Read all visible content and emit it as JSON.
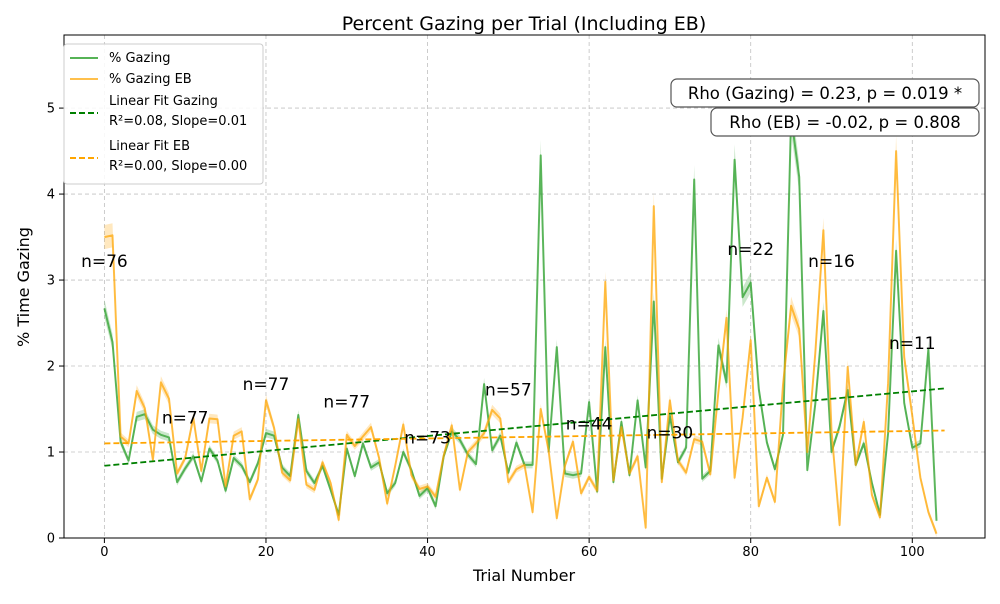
{
  "chart_data": {
    "type": "line",
    "title": "Percent Gazing per Trial (Including EB)",
    "xlabel": "Trial Number",
    "ylabel": "% Time Gazing",
    "xlim": [
      -5,
      109
    ],
    "ylim": [
      0,
      5.85
    ],
    "xticks": [
      0,
      20,
      40,
      60,
      80,
      100
    ],
    "yticks": [
      0,
      1,
      2,
      3,
      4,
      5
    ],
    "grid": true,
    "legend": "top-left",
    "colors": {
      "gazing": "#2ca02c",
      "eb": "#ffa500",
      "fit_gazing": "#008000",
      "fit_eb": "#ffa500"
    },
    "series": [
      {
        "name": "% Gazing",
        "x_start": 0,
        "values": [
          2.67,
          2.28,
          1.12,
          0.9,
          1.41,
          1.44,
          1.26,
          1.2,
          1.17,
          0.65,
          0.81,
          0.95,
          0.66,
          1.04,
          0.9,
          0.55,
          0.93,
          0.84,
          0.65,
          0.87,
          1.22,
          1.19,
          0.82,
          0.72,
          1.43,
          0.78,
          0.64,
          0.84,
          0.56,
          0.27,
          1.04,
          0.72,
          1.1,
          0.82,
          0.88,
          0.52,
          0.64,
          1.0,
          0.79,
          0.49,
          0.58,
          0.37,
          0.95,
          1.24,
          1.14,
          0.97,
          0.86,
          1.79,
          1.02,
          1.19,
          0.76,
          1.11,
          0.85,
          0.85,
          4.45,
          1.01,
          2.22,
          0.75,
          0.73,
          0.75,
          1.58,
          0.54,
          2.22,
          0.65,
          1.35,
          0.73,
          1.6,
          0.82,
          2.75,
          0.69,
          1.42,
          0.88,
          1.05,
          4.17,
          0.69,
          0.78,
          2.24,
          1.81,
          4.4,
          2.8,
          2.97,
          1.73,
          1.11,
          0.8,
          1.2,
          4.9,
          4.2,
          0.79,
          1.56,
          2.64,
          1.0,
          1.3,
          1.72,
          0.85,
          1.1,
          0.64,
          0.27,
          1.22,
          3.34,
          1.57,
          1.05,
          1.1,
          2.2,
          0.2
        ]
      },
      {
        "name": "% Gazing EB",
        "x_start": 0,
        "values": [
          3.5,
          3.52,
          1.18,
          1.1,
          1.71,
          1.51,
          0.91,
          1.81,
          1.62,
          0.75,
          0.93,
          1.4,
          0.78,
          1.39,
          1.38,
          0.6,
          1.19,
          1.24,
          0.45,
          0.68,
          1.6,
          1.28,
          0.76,
          0.67,
          1.38,
          0.62,
          0.56,
          0.88,
          0.64,
          0.21,
          1.2,
          1.07,
          1.18,
          1.29,
          0.93,
          0.4,
          0.84,
          1.32,
          0.73,
          0.57,
          0.6,
          0.48,
          0.96,
          1.31,
          0.56,
          1.0,
          1.1,
          1.22,
          1.49,
          1.39,
          0.65,
          0.8,
          0.85,
          0.3,
          1.5,
          1.01,
          0.23,
          0.84,
          1.12,
          0.52,
          0.71,
          0.55,
          2.98,
          0.67,
          1.29,
          0.75,
          0.95,
          0.12,
          3.86,
          0.65,
          1.6,
          0.9,
          0.76,
          1.15,
          1.12,
          0.74,
          1.7,
          2.56,
          0.7,
          1.4,
          2.3,
          0.37,
          0.7,
          0.42,
          1.78,
          2.7,
          2.43,
          1.0,
          2.15,
          3.58,
          1.25,
          0.15,
          1.99,
          0.85,
          1.35,
          0.5,
          0.24,
          1.8,
          4.5,
          2.1,
          1.42,
          0.7,
          0.3,
          0.05
        ]
      }
    ],
    "fits": [
      {
        "label_line1": "Linear Fit Gazing",
        "label_line2": "R²=0.08, Slope=0.01",
        "x": [
          0,
          104
        ],
        "y": [
          0.84,
          1.74
        ]
      },
      {
        "label_line1": "Linear Fit EB",
        "label_line2": "R²=0.00, Slope=0.00",
        "x": [
          0,
          104
        ],
        "y": [
          1.1,
          1.25
        ]
      }
    ],
    "n_labels": [
      {
        "text": "n=76",
        "x": 0,
        "y": 3.15
      },
      {
        "text": "n=77",
        "x": 10,
        "y": 1.33
      },
      {
        "text": "n=77",
        "x": 20,
        "y": 1.72
      },
      {
        "text": "n=77",
        "x": 30,
        "y": 1.52
      },
      {
        "text": "n=73",
        "x": 40,
        "y": 1.1
      },
      {
        "text": "n=57",
        "x": 50,
        "y": 1.66
      },
      {
        "text": "n=44",
        "x": 60,
        "y": 1.26
      },
      {
        "text": "n=30",
        "x": 70,
        "y": 1.16
      },
      {
        "text": "n=22",
        "x": 80,
        "y": 3.29
      },
      {
        "text": "n=16",
        "x": 90,
        "y": 3.15
      },
      {
        "text": "n=11",
        "x": 100,
        "y": 2.2
      }
    ],
    "annotations": [
      "Rho (Gazing) = 0.23, p = 0.019 *",
      "Rho (EB) = -0.02, p = 0.808"
    ]
  }
}
